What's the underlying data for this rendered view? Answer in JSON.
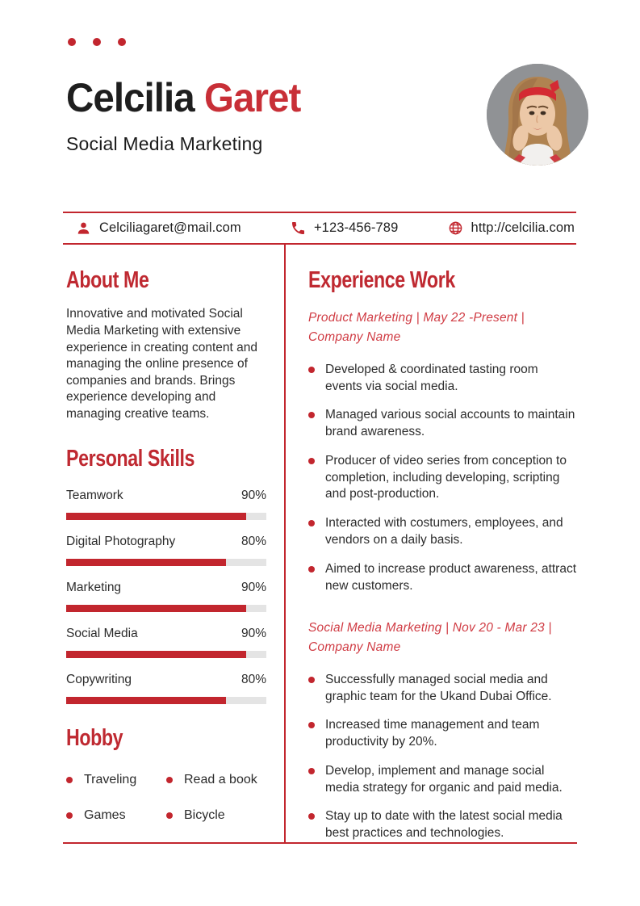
{
  "colors": {
    "accent": "#c2262e",
    "heading_red": "#bf2931",
    "subheading_red": "#d03c44",
    "name_red": "#c82f37",
    "body_text": "#2d2d2d",
    "bar_track": "#e4e4e4",
    "photo_background": "#909295"
  },
  "header": {
    "name_first": "Celcilia",
    "name_last": "Garet",
    "subtitle": "Social Media Marketing",
    "photo": "portrait of woman with red headband, hands on cheeks",
    "decorative_dots": 3
  },
  "contact": {
    "email": {
      "icon": "person-icon",
      "value": "Celciliagaret@mail.com"
    },
    "phone": {
      "icon": "phone-icon",
      "value": "+123-456-789"
    },
    "website": {
      "icon": "globe-icon",
      "value": "http://celcilia.com"
    }
  },
  "about": {
    "title": "About Me",
    "text": "Innovative and motivated Social Media Marketing with extensive experience in creating content and managing the online presence of companies and brands. Brings experience developing and managing creative teams."
  },
  "skills": {
    "title": "Personal Skills",
    "items": [
      {
        "label": "Teamwork",
        "percent": "90%",
        "value": 90
      },
      {
        "label": "Digital Photography",
        "percent": "80%",
        "value": 80
      },
      {
        "label": "Marketing",
        "percent": "90%",
        "value": 90
      },
      {
        "label": "Social Media",
        "percent": "90%",
        "value": 90
      },
      {
        "label": "Copywriting",
        "percent": "80%",
        "value": 80
      }
    ]
  },
  "hobby": {
    "title": "Hobby",
    "items": [
      "Traveling",
      "Read a book",
      "Games",
      "Bicycle"
    ]
  },
  "experience": {
    "title": "Experience Work",
    "jobs": [
      {
        "heading": "Product Marketing | May 22 -Present |\nCompany Name",
        "bullets": [
          "Developed & coordinated tasting room events via social media.",
          "Managed various social accounts to maintain brand awareness.",
          "Producer of video series from conception to completion, including developing, scripting and post-production.",
          "Interacted with costumers, employees, and vendors on a daily basis.",
          "Aimed to increase product awareness, attract new customers."
        ]
      },
      {
        "heading": "Social Media Marketing | Nov 20 - Mar 23 |\nCompany Name",
        "bullets": [
          "Successfully managed social media and graphic team for the Ukand Dubai Office.",
          "Increased time management and team productivity by 20%.",
          "Develop, implement and manage social media strategy for organic and paid media.",
          "Stay up to date with the latest social media best practices and technologies."
        ]
      }
    ]
  }
}
